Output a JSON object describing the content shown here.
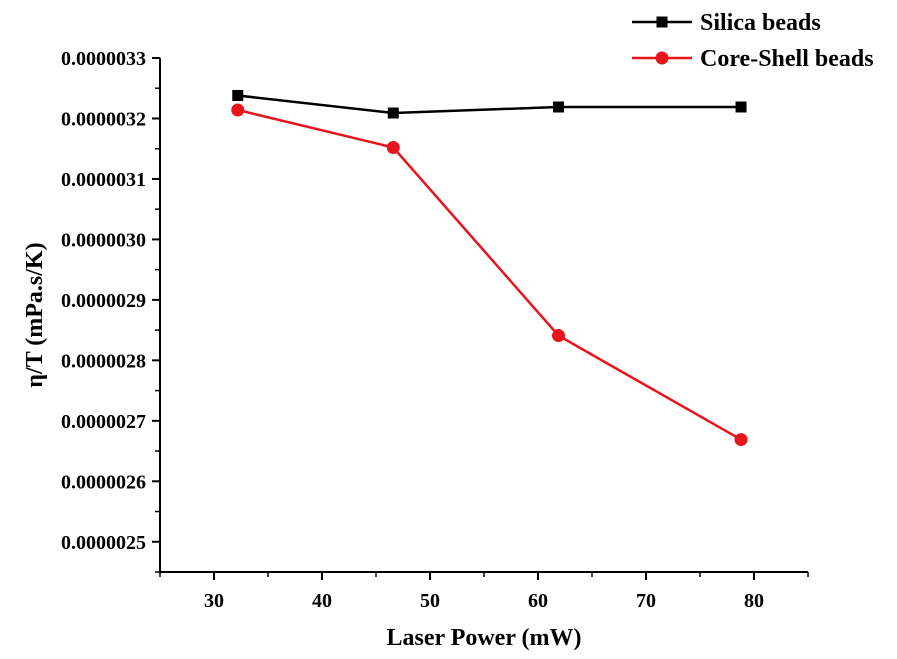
{
  "chart_data": {
    "type": "line",
    "title": "",
    "xlabel": "Laser Power (mW)",
    "ylabel": "η/T (mPa.s/K)",
    "xlim": [
      25,
      85
    ],
    "ylim": [
      2.45e-06,
      3.3e-06
    ],
    "xticks": [
      30,
      40,
      50,
      60,
      70,
      80
    ],
    "xtick_labels": [
      "30",
      "40",
      "50",
      "60",
      "70",
      "80"
    ],
    "yticks": [
      2.5e-06,
      2.6e-06,
      2.7e-06,
      2.8e-06,
      2.9e-06,
      3e-06,
      3.1e-06,
      3.2e-06,
      3.3e-06
    ],
    "ytick_labels": [
      "0.0000025",
      "0.0000026",
      "0.0000027",
      "0.0000028",
      "0.0000029",
      "0.0000030",
      "0.0000031",
      "0.0000032",
      "0.0000033"
    ],
    "grid": false,
    "legend_position": "top-right",
    "series": [
      {
        "name": "Silica beads",
        "color": "#000000",
        "marker": "square",
        "x": [
          32.2,
          46.6,
          61.9,
          78.8
        ],
        "y": [
          3.238e-06,
          3.209e-06,
          3.219e-06,
          3.219e-06
        ]
      },
      {
        "name": "Core-Shell beads",
        "color": "#e8141b",
        "marker": "circle",
        "x": [
          32.2,
          46.6,
          61.9,
          78.8
        ],
        "y": [
          3.214e-06,
          3.152e-06,
          2.841e-06,
          2.669e-06
        ]
      }
    ]
  }
}
